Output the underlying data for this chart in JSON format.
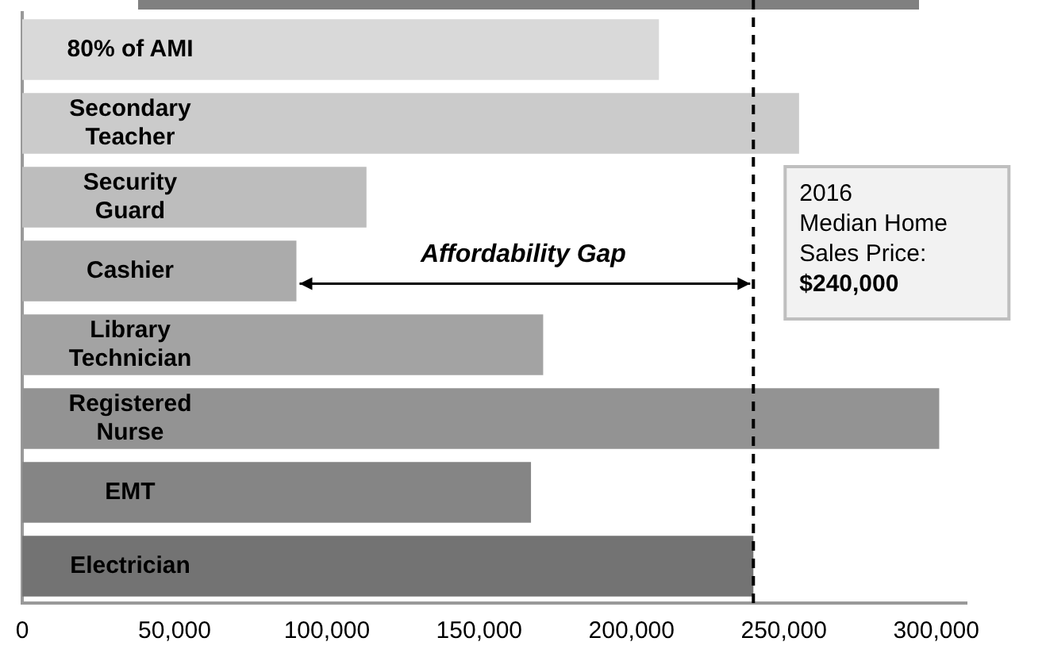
{
  "chart_data": {
    "type": "bar",
    "orientation": "horizontal",
    "categories": [
      "80% of AMI",
      "Secondary Teacher",
      "Security Guard",
      "Cashier",
      "Library Technician",
      "Registered Nurse",
      "EMT",
      "Electrician"
    ],
    "values": [
      209000,
      255000,
      113000,
      90000,
      171000,
      301000,
      167000,
      240000
    ],
    "colors": [
      "#d9d9d9",
      "#cbcbcb",
      "#bdbdbd",
      "#ababab",
      "#a3a3a3",
      "#939393",
      "#858585",
      "#737373"
    ],
    "xlim": [
      0,
      310000
    ],
    "xticks": [
      0,
      {
        "value": 50000,
        "label": "50,000"
      },
      {
        "value": 100000,
        "label": "100,000"
      },
      {
        "value": 150000,
        "label": "150,000"
      },
      {
        "value": 200000,
        "label": "200,000"
      },
      {
        "value": 250000,
        "label": "250,000"
      },
      {
        "value": 300000,
        "label": "300,000"
      }
    ],
    "ref_lines": [
      {
        "axis": "x",
        "value": 240000,
        "label": "2016\nMedian Home\nSales Price:\n$240,000",
        "line_style": "dashed",
        "color": "#000000"
      }
    ],
    "annotations": [
      "Affordability Gap"
    ],
    "grid": false,
    "legend": false
  }
}
